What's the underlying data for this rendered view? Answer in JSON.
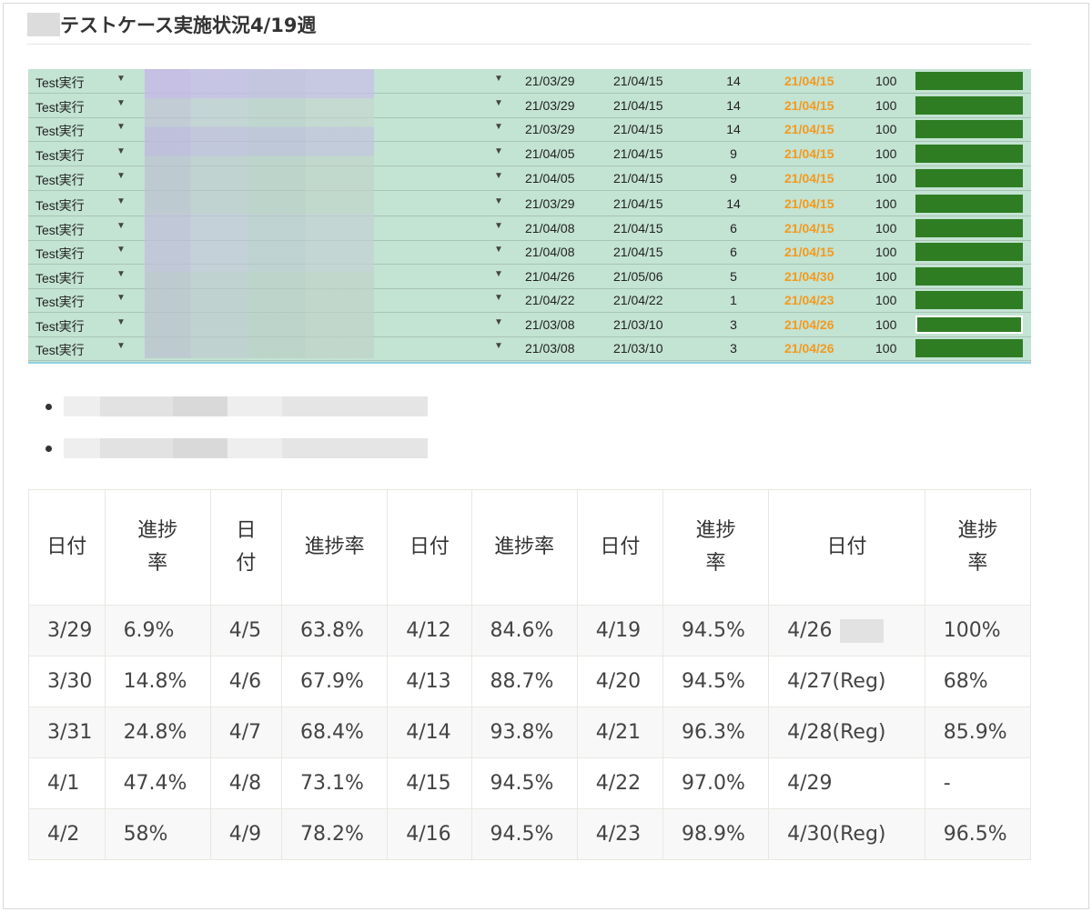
{
  "page": {
    "title": "テストケース実施状況4/19週"
  },
  "sheet": {
    "rows": [
      {
        "status": "Test実行",
        "start": "21/03/29",
        "end": "21/04/15",
        "days": "14",
        "actual": "21/04/15",
        "pct": "100"
      },
      {
        "status": "Test実行",
        "start": "21/03/29",
        "end": "21/04/15",
        "days": "14",
        "actual": "21/04/15",
        "pct": "100"
      },
      {
        "status": "Test実行",
        "start": "21/03/29",
        "end": "21/04/15",
        "days": "14",
        "actual": "21/04/15",
        "pct": "100"
      },
      {
        "status": "Test実行",
        "start": "21/04/05",
        "end": "21/04/15",
        "days": "9",
        "actual": "21/04/15",
        "pct": "100"
      },
      {
        "status": "Test実行",
        "start": "21/04/05",
        "end": "21/04/15",
        "days": "9",
        "actual": "21/04/15",
        "pct": "100"
      },
      {
        "status": "Test実行",
        "start": "21/03/29",
        "end": "21/04/15",
        "days": "14",
        "actual": "21/04/15",
        "pct": "100"
      },
      {
        "status": "Test実行",
        "start": "21/04/08",
        "end": "21/04/15",
        "days": "6",
        "actual": "21/04/15",
        "pct": "100"
      },
      {
        "status": "Test実行",
        "start": "21/04/08",
        "end": "21/04/15",
        "days": "6",
        "actual": "21/04/15",
        "pct": "100"
      },
      {
        "status": "Test実行",
        "start": "21/04/26",
        "end": "21/05/06",
        "days": "5",
        "actual": "21/04/30",
        "pct": "100"
      },
      {
        "status": "Test実行",
        "start": "21/04/22",
        "end": "21/04/22",
        "days": "1",
        "actual": "21/04/23",
        "pct": "100"
      },
      {
        "status": "Test実行",
        "start": "21/03/08",
        "end": "21/03/10",
        "days": "3",
        "actual": "21/04/26",
        "pct": "100"
      },
      {
        "status": "Test実行",
        "start": "21/03/08",
        "end": "21/03/10",
        "days": "3",
        "actual": "21/04/26",
        "pct": "100"
      }
    ],
    "dropdown_icon": "caret-down-icon",
    "bar_color": "#2e7d22",
    "actual_color": "#f39a1e"
  },
  "progress_table": {
    "headers": [
      "日付",
      "進捗率",
      "日付",
      "進捗率",
      "日付",
      "進捗率",
      "日付",
      "進捗率",
      "日付",
      "進捗率"
    ],
    "rows": [
      [
        "3/29",
        "6.9%",
        "4/5",
        "63.8%",
        "4/12",
        "84.6%",
        "4/19",
        "94.5%",
        "4/26",
        "100%"
      ],
      [
        "3/30",
        "14.8%",
        "4/6",
        "67.9%",
        "4/13",
        "88.7%",
        "4/20",
        "94.5%",
        "4/27(Reg)",
        "68%"
      ],
      [
        "3/31",
        "24.8%",
        "4/7",
        "68.4%",
        "4/14",
        "93.8%",
        "4/21",
        "96.3%",
        "4/28(Reg)",
        "85.9%"
      ],
      [
        "4/1",
        "47.4%",
        "4/8",
        "73.1%",
        "4/15",
        "94.5%",
        "4/22",
        "97.0%",
        "4/29",
        "-"
      ],
      [
        "4/2",
        "58%",
        "4/9",
        "78.2%",
        "4/16",
        "94.5%",
        "4/23",
        "98.9%",
        "4/30(Reg)",
        "96.5%"
      ]
    ]
  }
}
